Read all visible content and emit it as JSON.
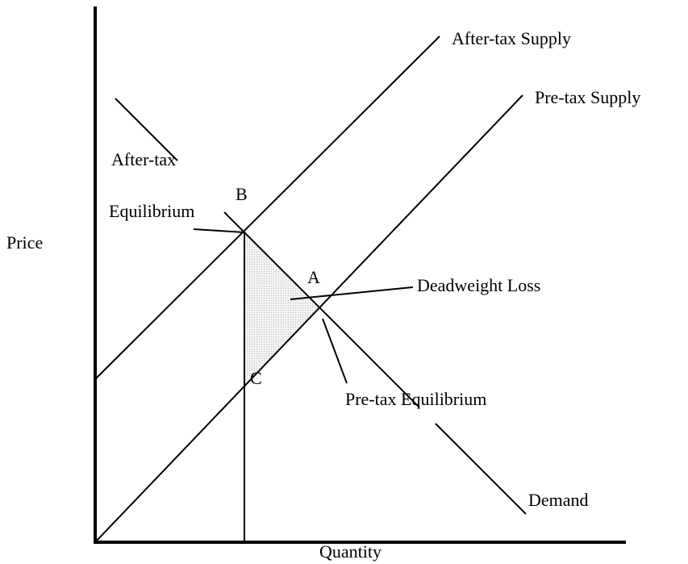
{
  "axes": {
    "y_label": "Price",
    "x_label": "Quantity"
  },
  "curves": {
    "after_tax_supply": "After-tax Supply",
    "pre_tax_supply": "Pre-tax Supply",
    "demand": "Demand"
  },
  "points": {
    "b": "B",
    "a": "A",
    "c": "C"
  },
  "annotations": {
    "after_tax_equilibrium": [
      "After-tax",
      "Equilibrium"
    ],
    "deadweight_loss": "Deadweight Loss",
    "pre_tax_equilibrium": "Pre-tax Equilibrium"
  }
}
